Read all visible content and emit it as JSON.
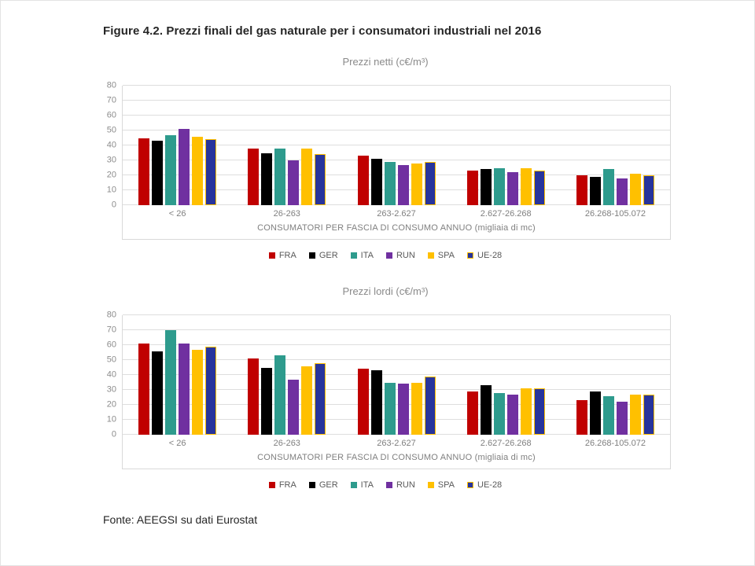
{
  "page": {
    "title": "Figure 4.2. Prezzi finali del gas naturale per i consumatori industriali nel 2016",
    "source": "Fonte: AEEGSI su dati Eurostat"
  },
  "colors": {
    "fra": "#C00000",
    "ger": "#000000",
    "ita": "#2E9B8D",
    "run": "#7030A0",
    "spa": "#FFC000",
    "ue28": "#27349C",
    "ue28_border": "#FFC000",
    "grid": "#DEDEDE",
    "axis_text": "#7F7F7F"
  },
  "chart_data": [
    {
      "type": "bar",
      "title": "Prezzi netti (c€/m³)",
      "xlabel": "CONSUMATORI PER FASCIA DI CONSUMO ANNUO (migliaia di mc)",
      "ylabel": "",
      "ylim": [
        0,
        80
      ],
      "ytick_step": 10,
      "grid": true,
      "legend_position": "bottom",
      "categories": [
        "< 26",
        "26-263",
        "263-2.627",
        "2.627-26.268",
        "26.268-105.072"
      ],
      "series": [
        {
          "name": "FRA",
          "color": "#C00000",
          "values": [
            45,
            38,
            33,
            23,
            20
          ]
        },
        {
          "name": "GER",
          "color": "#000000",
          "values": [
            43,
            35,
            31,
            24,
            19
          ]
        },
        {
          "name": "ITA",
          "color": "#2E9B8D",
          "values": [
            47,
            38,
            29,
            25,
            24
          ]
        },
        {
          "name": "RUN",
          "color": "#7030A0",
          "values": [
            51,
            30,
            27,
            22,
            18
          ]
        },
        {
          "name": "SPA",
          "color": "#FFC000",
          "values": [
            46,
            38,
            28,
            25,
            21
          ]
        },
        {
          "name": "UE-28",
          "color": "#27349C",
          "border": "#FFC000",
          "values": [
            44,
            34,
            29,
            23,
            20
          ]
        }
      ]
    },
    {
      "type": "bar",
      "title": "Prezzi lordi (c€/m³)",
      "xlabel": "CONSUMATORI PER FASCIA DI CONSUMO ANNUO (migliaia di mc)",
      "ylabel": "",
      "ylim": [
        0,
        80
      ],
      "ytick_step": 10,
      "grid": true,
      "legend_position": "bottom",
      "categories": [
        "< 26",
        "26-263",
        "263-2.627",
        "2.627-26.268",
        "26.268-105.072"
      ],
      "series": [
        {
          "name": "FRA",
          "color": "#C00000",
          "values": [
            61,
            51,
            44,
            29,
            23
          ]
        },
        {
          "name": "GER",
          "color": "#000000",
          "values": [
            56,
            45,
            43,
            33,
            29
          ]
        },
        {
          "name": "ITA",
          "color": "#2E9B8D",
          "values": [
            70,
            53,
            35,
            28,
            26
          ]
        },
        {
          "name": "RUN",
          "color": "#7030A0",
          "values": [
            61,
            37,
            34,
            27,
            22
          ]
        },
        {
          "name": "SPA",
          "color": "#FFC000",
          "values": [
            57,
            46,
            35,
            31,
            27
          ]
        },
        {
          "name": "UE-28",
          "color": "#27349C",
          "border": "#FFC000",
          "values": [
            59,
            48,
            39,
            31,
            27
          ]
        }
      ]
    }
  ]
}
